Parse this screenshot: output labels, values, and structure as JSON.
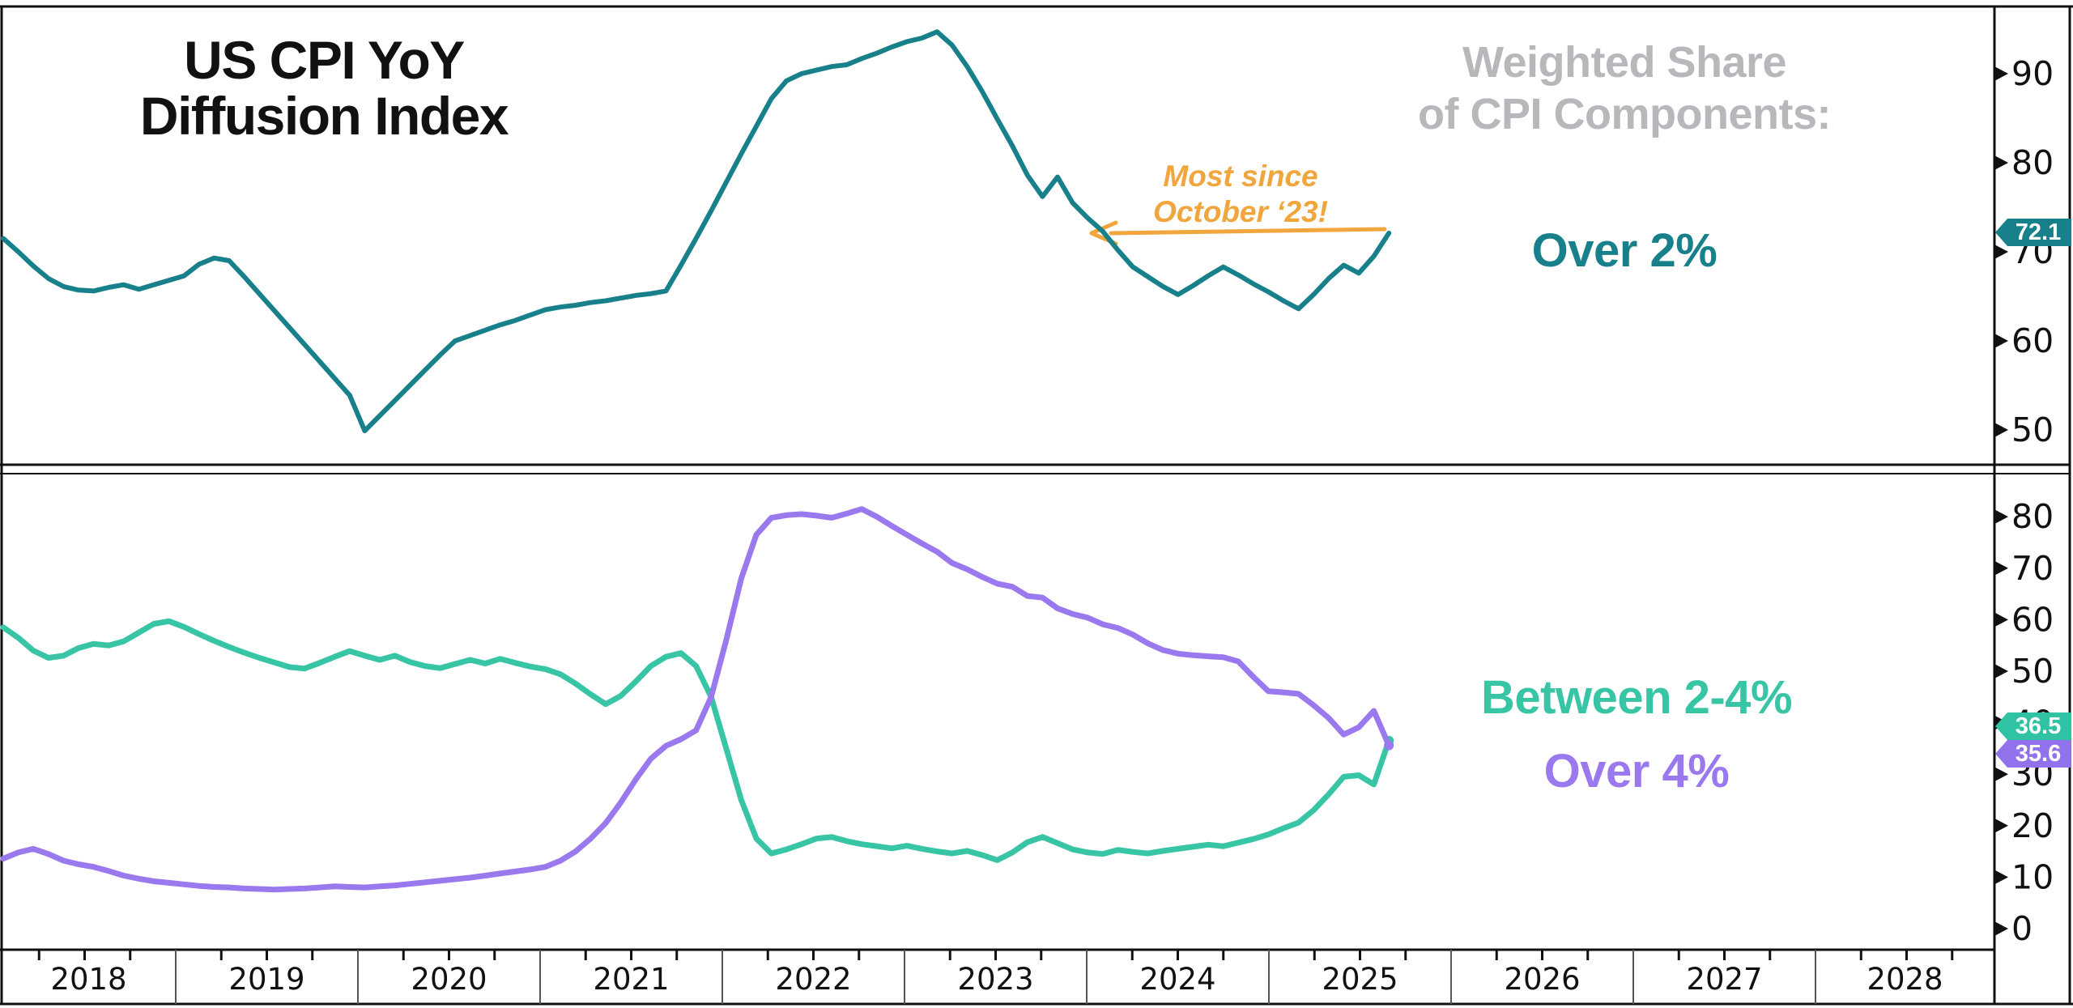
{
  "title": [
    "US CPI YoY",
    "Diffusion Index"
  ],
  "right_heading": [
    "Weighted Share",
    "of CPI Components:"
  ],
  "labels": {
    "over2": "Over 2%",
    "between24": "Between 2-4%",
    "over4": "Over 4%"
  },
  "badges": {
    "over2": "72.1",
    "between24": "36.5",
    "over4": "35.6"
  },
  "annotation": {
    "lines": [
      "Most since",
      "October ‘23!"
    ],
    "arrow_direction": "left"
  },
  "colors": {
    "over2_teal": "#17808a",
    "between24_green": "#38c5a5",
    "between24_badge": "#2fc3a3",
    "over4_purple": "#9a78ee",
    "over4_badge": "#9271ec",
    "annotation_orange": "#f0a63c",
    "heading_gray": "#b7b8bb",
    "axis_black": "#111111"
  },
  "axes": {
    "top_panel_ticks": [
      90,
      80,
      70,
      60,
      50
    ],
    "bottom_panel_ticks": [
      80,
      70,
      60,
      50,
      40,
      30,
      20,
      10,
      0
    ],
    "years": [
      "2018",
      "2019",
      "2020",
      "2021",
      "2022",
      "2023",
      "2024",
      "2025",
      "2026",
      "2027",
      "2028"
    ]
  },
  "chart_data": [
    {
      "type": "line",
      "panel": "top",
      "name": "Over 2%",
      "title": "US CPI YoY Diffusion Index — weighted share of CPI components over 2%",
      "x_start": "2018-01",
      "frequency": "monthly",
      "last_value": 72.1,
      "ylim": [
        46,
        97
      ],
      "values": [
        71.5,
        70.0,
        68.4,
        67.0,
        66.1,
        65.7,
        65.6,
        66.0,
        66.3,
        65.8,
        66.3,
        66.8,
        67.3,
        68.6,
        69.3,
        69.0,
        67.2,
        65.3,
        63.4,
        61.5,
        59.6,
        57.7,
        55.8,
        53.9,
        49.9,
        51.6,
        53.3,
        55.0,
        56.7,
        58.4,
        60.0,
        60.6,
        61.2,
        61.8,
        62.3,
        62.9,
        63.5,
        63.8,
        64.0,
        64.3,
        64.5,
        64.8,
        65.1,
        65.3,
        65.6,
        68.5,
        71.5,
        74.6,
        77.8,
        81.0,
        84.1,
        87.2,
        89.2,
        90.0,
        90.4,
        90.8,
        91.0,
        91.7,
        92.3,
        93.0,
        93.6,
        94.0,
        94.7,
        93.2,
        90.8,
        88.0,
        84.9,
        81.9,
        78.6,
        76.2,
        78.4,
        75.5,
        73.8,
        72.3,
        70.2,
        68.3,
        67.2,
        66.1,
        65.2,
        66.2,
        67.3,
        68.3,
        67.4,
        66.4,
        65.5,
        64.5,
        63.6,
        65.2,
        67.0,
        68.5,
        67.6,
        69.5,
        72.1
      ]
    },
    {
      "type": "line",
      "panel": "bottom",
      "name": "Between 2-4%",
      "x_start": "2018-01",
      "frequency": "monthly",
      "last_value": 36.5,
      "ylim": [
        -4,
        88
      ],
      "values": [
        58.5,
        56.5,
        54.0,
        52.6,
        53.0,
        54.5,
        55.3,
        55.0,
        55.8,
        57.5,
        59.2,
        59.7,
        58.6,
        57.2,
        55.9,
        54.7,
        53.6,
        52.6,
        51.7,
        50.8,
        50.5,
        51.6,
        52.8,
        53.9,
        53.0,
        52.2,
        53.0,
        51.8,
        51.0,
        50.6,
        51.4,
        52.2,
        51.5,
        52.4,
        51.6,
        50.9,
        50.4,
        49.4,
        47.6,
        45.5,
        43.6,
        45.2,
        48.0,
        51.0,
        52.8,
        53.5,
        51.0,
        45.0,
        35.0,
        25.0,
        17.5,
        14.6,
        15.4,
        16.4,
        17.5,
        17.8,
        17.0,
        16.4,
        16.0,
        15.6,
        16.1,
        15.5,
        15.0,
        14.6,
        15.1,
        14.3,
        13.3,
        14.8,
        16.8,
        17.8,
        16.6,
        15.4,
        14.8,
        14.5,
        15.3,
        14.9,
        14.6,
        15.1,
        15.5,
        15.9,
        16.3,
        16.0,
        16.7,
        17.4,
        18.3,
        19.5,
        20.6,
        23.0,
        26.1,
        29.5,
        29.8,
        28.0,
        36.5
      ]
    },
    {
      "type": "line",
      "panel": "bottom",
      "name": "Over 4%",
      "x_start": "2018-01",
      "frequency": "monthly",
      "last_value": 35.6,
      "ylim": [
        -4,
        88
      ],
      "values": [
        13.6,
        14.8,
        15.5,
        14.5,
        13.2,
        12.5,
        12.0,
        11.2,
        10.3,
        9.7,
        9.2,
        8.9,
        8.6,
        8.3,
        8.1,
        8.0,
        7.8,
        7.7,
        7.6,
        7.7,
        7.8,
        8.0,
        8.2,
        8.1,
        8.0,
        8.2,
        8.4,
        8.7,
        9.0,
        9.3,
        9.6,
        9.9,
        10.3,
        10.7,
        11.1,
        11.5,
        12.0,
        13.2,
        15.0,
        17.5,
        20.5,
        24.5,
        29.0,
        33.0,
        35.5,
        36.8,
        38.5,
        45.0,
        56.0,
        68.0,
        76.5,
        79.8,
        80.3,
        80.5,
        80.2,
        79.8,
        80.6,
        81.5,
        80.0,
        78.2,
        76.5,
        74.8,
        73.2,
        71.0,
        69.8,
        68.3,
        67.0,
        66.4,
        64.6,
        64.3,
        62.2,
        61.1,
        60.4,
        59.1,
        58.4,
        57.1,
        55.4,
        54.1,
        53.4,
        53.1,
        52.9,
        52.7,
        51.9,
        48.9,
        46.1,
        45.9,
        45.6,
        43.4,
        40.9,
        37.7,
        39.1,
        42.3,
        35.6,
        35.6,
        35.6,
        35.6,
        35.6
      ]
    }
  ]
}
